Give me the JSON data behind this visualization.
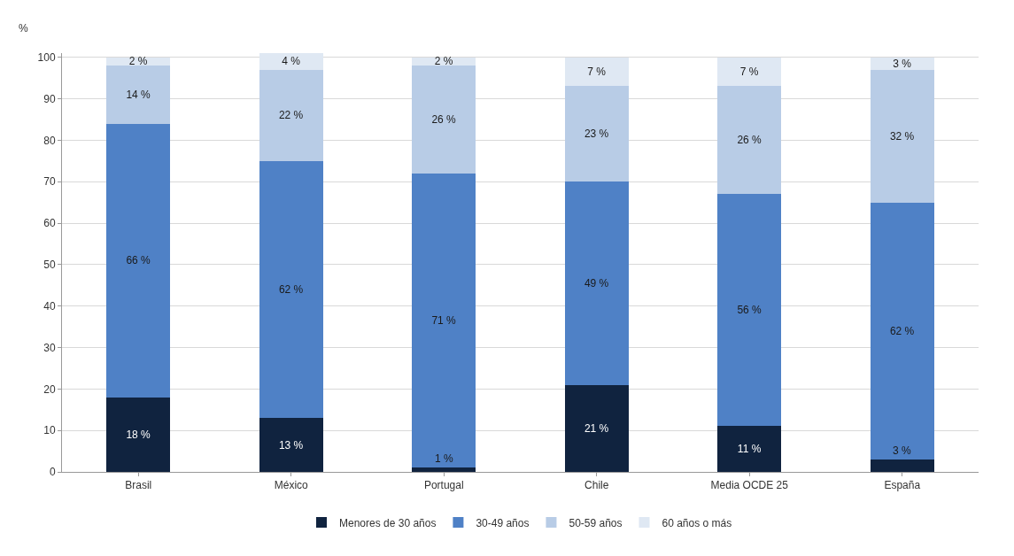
{
  "chart_data": {
    "type": "bar",
    "stacked": true,
    "ylabel": "%",
    "categories": [
      "Brasil",
      "México",
      "Portugal",
      "Chile",
      "Media OCDE 25",
      "España"
    ],
    "series": [
      {
        "name": "Menores de 30 años",
        "color": "#10233f",
        "values": [
          18,
          13,
          1,
          21,
          11,
          3
        ],
        "value_labels": [
          "18 %",
          "13 %",
          "1 %",
          "21 %",
          "11 %",
          "3 %"
        ]
      },
      {
        "name": "30-49 años",
        "color": "#4f81c6",
        "values": [
          66,
          62,
          71,
          49,
          56,
          62
        ],
        "value_labels": [
          "66 %",
          "62 %",
          "71 %",
          "49 %",
          "56 %",
          "62 %"
        ]
      },
      {
        "name": "50-59 años",
        "color": "#b8cce6",
        "values": [
          14,
          22,
          26,
          23,
          26,
          32
        ],
        "value_labels": [
          "14 %",
          "22 %",
          "26 %",
          "23 %",
          "26 %",
          "32 %"
        ]
      },
      {
        "name": "60 años o más",
        "color": "#dfe8f3",
        "values": [
          2,
          4,
          2,
          7,
          7,
          3
        ],
        "value_labels": [
          "2 %",
          "4 %",
          "2 %",
          "7 %",
          "7 %",
          "3 %"
        ]
      }
    ],
    "ylim": [
      0,
      101
    ],
    "yticks": [
      0,
      10,
      20,
      30,
      40,
      50,
      60,
      70,
      80,
      90,
      100
    ],
    "grid": "y",
    "legend": "bottom"
  }
}
